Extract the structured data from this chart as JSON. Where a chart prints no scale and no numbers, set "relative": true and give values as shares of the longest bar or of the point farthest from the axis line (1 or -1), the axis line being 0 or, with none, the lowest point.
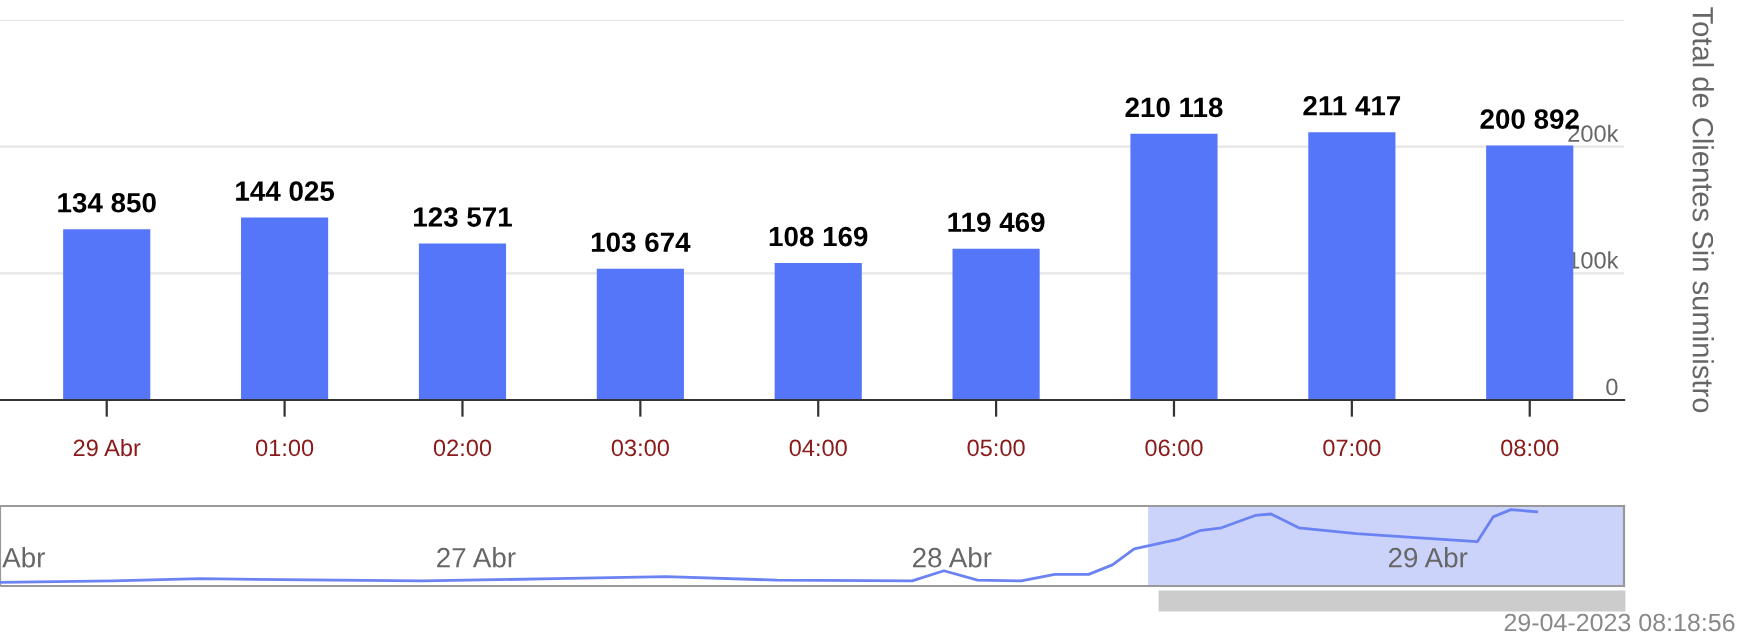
{
  "chart_data": [
    {
      "type": "bar",
      "ylabel": "Total de Clientes Sin suministro",
      "categories": [
        "29 Abr",
        "01:00",
        "02:00",
        "03:00",
        "04:00",
        "05:00",
        "06:00",
        "07:00",
        "08:00"
      ],
      "values": [
        134850,
        144025,
        123571,
        103674,
        108169,
        119469,
        210118,
        211417,
        200892
      ],
      "value_labels": [
        "134 850",
        "144 025",
        "123 571",
        "103 674",
        "108 169",
        "119 469",
        "210 118",
        "211 417",
        "200 892"
      ],
      "color": "#5576f8",
      "ylim": [
        0,
        300000
      ],
      "yticks": [
        0,
        {
          "value": 100000,
          "label": "100k"
        },
        {
          "value": 200000,
          "label": "200k"
        },
        {
          "value": 300000,
          "label": null
        }
      ],
      "grid": "y",
      "legend": false
    },
    {
      "type": "line",
      "relative": true,
      "x": [
        "2023-04-26T02:18",
        "2023-04-26T08:00",
        "2023-04-26T12:24",
        "2023-04-26T19:12",
        "2023-04-26T23:36",
        "2023-04-27T06:18",
        "2023-04-27T11:54",
        "2023-04-27T17:30",
        "2023-04-28T00:18",
        "2023-04-28T01:54",
        "2023-04-28T03:36",
        "2023-04-28T05:48",
        "2023-04-28T07:30",
        "2023-04-28T09:12",
        "2023-04-28T10:24",
        "2023-04-28T11:30",
        "2023-04-28T13:42",
        "2023-04-28T14:48",
        "2023-04-28T15:54",
        "2023-04-28T17:36",
        "2023-04-28T18:24",
        "2023-04-28T19:48",
        "2023-04-28T22:42",
        "2023-04-29T01:30",
        "2023-04-29T04:48",
        "2023-04-29T05:36",
        "2023-04-29T06:30",
        "2023-04-29T07:48"
      ],
      "values": [
        0,
        0.02,
        0.05,
        0.03,
        0.02,
        0.05,
        0.08,
        0.03,
        0.02,
        0.16,
        0.03,
        0.02,
        0.11,
        0.11,
        0.24,
        0.46,
        0.59,
        0.71,
        0.75,
        0.92,
        0.94,
        0.75,
        0.67,
        0.62,
        0.56,
        0.9,
        1,
        0.97
      ],
      "color": "#6b83f2",
      "xlim": [
        "2023-04-26T02:18",
        "2023-04-29T12:12"
      ],
      "xticks": [
        {
          "value": "2023-04-26T03:30",
          "label": "Abr"
        },
        {
          "value": "2023-04-27T02:18",
          "label": "27 Abr"
        },
        {
          "value": "2023-04-28T02:18",
          "label": "28 Abr"
        },
        {
          "value": "2023-04-29T02:18",
          "label": "29 Abr"
        }
      ],
      "bands": [
        {
          "axis": "x",
          "from": "2023-04-28T12:12",
          "to": "2023-04-29T12:12",
          "color": "#ccd3fb"
        }
      ],
      "grid": false,
      "legend": false,
      "tick_labels": "x",
      "annotations": [
        "29-04-2023 08:18:56"
      ]
    }
  ]
}
